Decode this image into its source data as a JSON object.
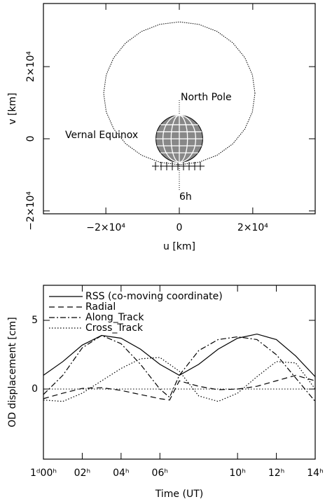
{
  "chart_data": [
    {
      "type": "orbit",
      "xlabel": "u [km]",
      "ylabel": "v [km]",
      "xlim": [
        -37000,
        37000
      ],
      "ylim": [
        -20800,
        37500
      ],
      "xticks": [
        {
          "value": -20000,
          "label": "−2×10⁴"
        },
        0,
        {
          "value": 20000,
          "label": "2×10⁴"
        }
      ],
      "yticks": [
        {
          "value": -20000,
          "label": "−2×10⁴"
        },
        0,
        {
          "value": 20000,
          "label": "2×10⁴"
        }
      ],
      "annotations": [
        "North Pole",
        "Vernal Equinox",
        "6h"
      ],
      "earth_radius": 6371,
      "orbit": {
        "x": [
          20600,
          19900,
          17840,
          14570,
          10300,
          5330,
          0,
          -5330,
          -10300,
          -14570,
          -17840,
          -19900,
          -20600,
          -19900,
          -17840,
          -14570,
          -10300,
          -5330,
          0,
          5330,
          10300,
          14570,
          17840,
          19900
        ],
        "y": [
          12600,
          17730,
          22500,
          26600,
          29750,
          31720,
          32400,
          31720,
          29750,
          26600,
          22500,
          17730,
          12600,
          7470,
          2700,
          -1400,
          -4550,
          -6520,
          -7200,
          -6520,
          -4550,
          -1400,
          2700,
          7470
        ]
      }
    },
    {
      "type": "line",
      "xlabel": "Time (UT)",
      "ylabel": "OD displacement [cm]",
      "xlim": [
        0,
        14
      ],
      "ylim": [
        -5.1,
        7.55
      ],
      "xticks": [
        {
          "value": 0,
          "label": "1ᵈ00ʰ"
        },
        {
          "value": 2,
          "label": "02ʰ"
        },
        {
          "value": 4,
          "label": "04ʰ"
        },
        {
          "value": 6,
          "label": "06ʰ"
        },
        {
          "value": 10,
          "label": "10ʰ"
        },
        {
          "value": 12,
          "label": "12ʰ"
        },
        {
          "value": 14,
          "label": "14ʰ"
        }
      ],
      "yticks": [
        0,
        5
      ],
      "legend": "upper left",
      "series": [
        {
          "name": "RSS (co-moving coordinate)",
          "linestyle": "solid",
          "color": "#000000",
          "x": [
            0,
            1,
            2,
            3,
            4,
            5,
            6,
            7,
            8,
            9,
            10,
            11,
            12,
            13,
            14
          ],
          "values": [
            1.0,
            2.0,
            3.2,
            3.9,
            3.7,
            2.9,
            1.8,
            1.0,
            1.8,
            2.9,
            3.7,
            4.0,
            3.6,
            2.4,
            0.9
          ]
        },
        {
          "name": "Radial",
          "linestyle": "dashed",
          "color": "#000000",
          "x": [
            0,
            1,
            2,
            3,
            4,
            5,
            6,
            6.5,
            7,
            8,
            9,
            10,
            11,
            12,
            13,
            14
          ],
          "values": [
            -0.7,
            -0.3,
            0.05,
            0.1,
            -0.1,
            -0.4,
            -0.7,
            -0.8,
            0.6,
            0.2,
            -0.05,
            0.0,
            0.2,
            0.6,
            1.0,
            0.6
          ]
        },
        {
          "name": "Along_Track",
          "linestyle": "dashdot",
          "color": "#000000",
          "x": [
            0,
            1,
            2,
            3,
            4,
            5,
            6,
            6.5,
            7,
            8,
            9,
            10,
            11,
            12,
            13,
            14
          ],
          "values": [
            -0.4,
            1.0,
            3.0,
            3.9,
            3.3,
            1.8,
            0.0,
            -0.6,
            1.0,
            2.8,
            3.6,
            3.8,
            3.6,
            2.5,
            0.8,
            -0.9
          ]
        },
        {
          "name": "Cross_Track",
          "linestyle": "dotted",
          "color": "#000000",
          "x": [
            0,
            1,
            2,
            3,
            4,
            5,
            6,
            7,
            8,
            9,
            10,
            11,
            12,
            13,
            14
          ],
          "values": [
            -0.8,
            -0.9,
            -0.3,
            0.6,
            1.5,
            2.2,
            2.3,
            1.3,
            -0.5,
            -0.9,
            -0.3,
            0.9,
            2.0,
            1.9,
            0.0
          ]
        }
      ]
    }
  ]
}
